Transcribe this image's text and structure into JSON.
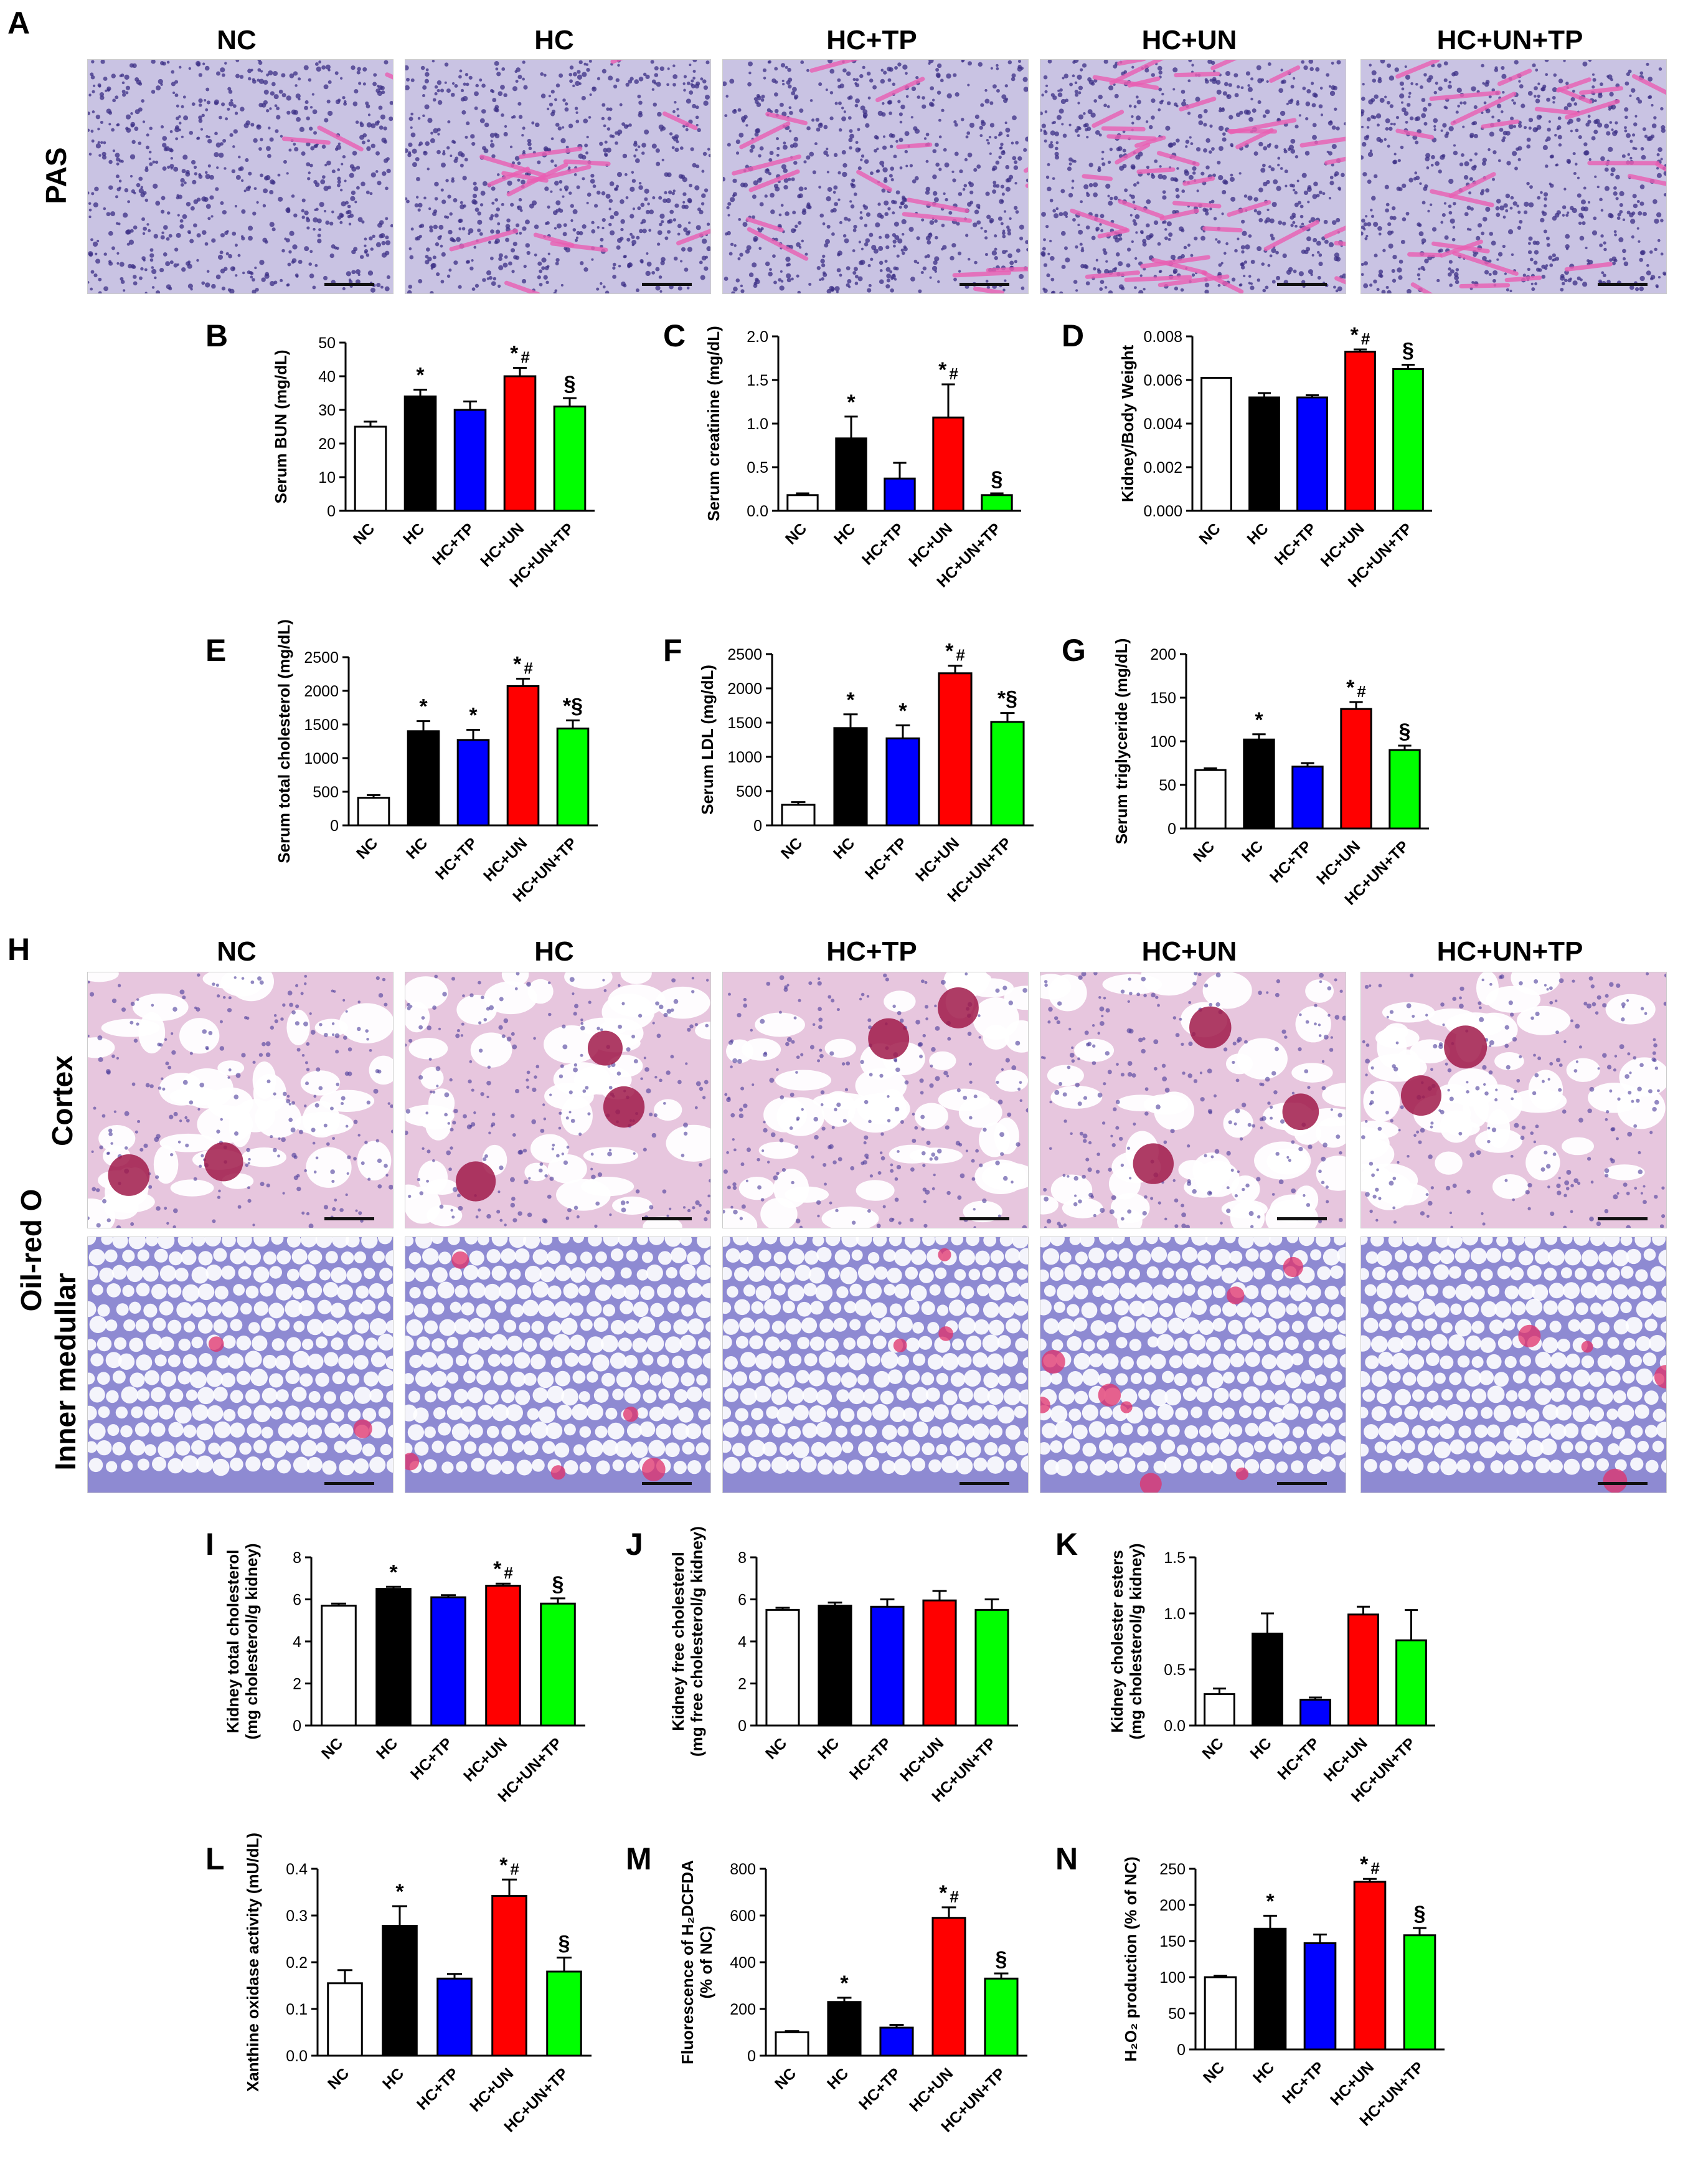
{
  "figure": {
    "panel_labels": [
      "A",
      "B",
      "C",
      "D",
      "E",
      "F",
      "G",
      "H",
      "I",
      "J",
      "K",
      "L",
      "M",
      "N"
    ],
    "group_names": [
      "NC",
      "HC",
      "HC+TP",
      "HC+UN",
      "HC+UN+TP"
    ],
    "colors": {
      "NC": "#ffffff",
      "HC": "#000000",
      "HC+TP": "#0000ff",
      "HC+UN": "#ff0000",
      "HC+UN+TP": "#00ff00"
    },
    "pas": {
      "row_label": "PAS",
      "images": [
        {
          "group": "NC",
          "pink": 0.05
        },
        {
          "group": "HC",
          "pink": 0.25
        },
        {
          "group": "HC+TP",
          "pink": 0.3
        },
        {
          "group": "HC+UN",
          "pink": 0.7
        },
        {
          "group": "HC+UN+TP",
          "pink": 0.45
        }
      ]
    },
    "oilred": {
      "stain_label": "Oil-red O",
      "cortex_label": "Cortex",
      "medullar_label": "Inner medullar",
      "cortex_images": [
        {
          "group": "NC",
          "red": 0.2
        },
        {
          "group": "HC",
          "red": 0.5
        },
        {
          "group": "HC+TP",
          "red": 0.3
        },
        {
          "group": "HC+UN",
          "red": 0.6
        },
        {
          "group": "HC+UN+TP",
          "red": 0.4
        }
      ],
      "medullar_images": [
        {
          "group": "NC",
          "red": 0.15
        },
        {
          "group": "HC",
          "red": 0.45
        },
        {
          "group": "HC+TP",
          "red": 0.25
        },
        {
          "group": "HC+UN",
          "red": 0.75
        },
        {
          "group": "HC+UN+TP",
          "red": 0.4
        }
      ]
    }
  },
  "chart_data": [
    {
      "panel": "B",
      "type": "bar",
      "ylabel": "Serum BUN (mg/dL)",
      "ylim": [
        0,
        50
      ],
      "yticks": [
        "0",
        "10",
        "20",
        "30",
        "40",
        "50"
      ],
      "categories": [
        "NC",
        "HC",
        "HC+TP",
        "HC+UN",
        "HC+UN+TP"
      ],
      "values": [
        25,
        34,
        30,
        40,
        31
      ],
      "errors": [
        1.5,
        2,
        2.5,
        2.5,
        2.5
      ],
      "annotations": [
        "",
        "*",
        "",
        "*#",
        "§"
      ]
    },
    {
      "panel": "C",
      "type": "bar",
      "ylabel": "Serum creatinine (mg/dL)",
      "ylim": [
        0,
        2.0
      ],
      "yticks": [
        "0.0",
        "0.5",
        "1.0",
        "1.5",
        "2.0"
      ],
      "categories": [
        "NC",
        "HC",
        "HC+TP",
        "HC+UN",
        "HC+UN+TP"
      ],
      "values": [
        0.18,
        0.83,
        0.37,
        1.07,
        0.18
      ],
      "errors": [
        0.02,
        0.25,
        0.18,
        0.38,
        0.02
      ],
      "annotations": [
        "",
        "*",
        "",
        "*#",
        "§"
      ]
    },
    {
      "panel": "D",
      "type": "bar",
      "ylabel": "Kidney/Body Weight",
      "ylim": [
        0,
        0.008
      ],
      "yticks": [
        "0.000",
        "0.002",
        "0.004",
        "0.006",
        "0.008"
      ],
      "categories": [
        "NC",
        "HC",
        "HC+TP",
        "HC+UN",
        "HC+UN+TP"
      ],
      "values": [
        0.0061,
        0.0052,
        0.0052,
        0.0073,
        0.0065
      ],
      "errors": [
        0.0,
        0.0002,
        0.0001,
        0.0001,
        0.0002
      ],
      "annotations": [
        "",
        "",
        "",
        "*#",
        "§"
      ]
    },
    {
      "panel": "E",
      "type": "bar",
      "ylabel": "Serum total cholesterol (mg/dL)",
      "ylim": [
        0,
        2500
      ],
      "yticks": [
        "0",
        "500",
        "1000",
        "1500",
        "2000",
        "2500"
      ],
      "categories": [
        "NC",
        "HC",
        "HC+TP",
        "HC+UN",
        "HC+UN+TP"
      ],
      "values": [
        410,
        1400,
        1270,
        2070,
        1440
      ],
      "errors": [
        40,
        150,
        150,
        110,
        120
      ],
      "annotations": [
        "",
        "*",
        "*",
        "*#",
        "*§"
      ]
    },
    {
      "panel": "F",
      "type": "bar",
      "ylabel": "Serum LDL (mg/dL)",
      "ylim": [
        0,
        2500
      ],
      "yticks": [
        "0",
        "500",
        "1000",
        "1500",
        "2000",
        "2500"
      ],
      "categories": [
        "NC",
        "HC",
        "HC+TP",
        "HC+UN",
        "HC+UN+TP"
      ],
      "values": [
        300,
        1420,
        1270,
        2220,
        1510
      ],
      "errors": [
        40,
        200,
        190,
        110,
        130
      ],
      "annotations": [
        "",
        "*",
        "*",
        "*#",
        "*§"
      ]
    },
    {
      "panel": "G",
      "type": "bar",
      "ylabel": "Serum triglyceride (mg/dL)",
      "ylim": [
        0,
        200
      ],
      "yticks": [
        "0",
        "50",
        "100",
        "150",
        "200"
      ],
      "categories": [
        "NC",
        "HC",
        "HC+TP",
        "HC+UN",
        "HC+UN+TP"
      ],
      "values": [
        67,
        102,
        71,
        137,
        90
      ],
      "errors": [
        2,
        6,
        4,
        8,
        5
      ],
      "annotations": [
        "",
        "*",
        "",
        "*#",
        "§"
      ]
    },
    {
      "panel": "I",
      "type": "bar",
      "ylabel": "Kidney total cholesterol\n(mg cholesterol/g kidney)",
      "ylim": [
        0,
        8
      ],
      "yticks": [
        "0",
        "2",
        "4",
        "6",
        "8"
      ],
      "categories": [
        "NC",
        "HC",
        "HC+TP",
        "HC+UN",
        "HC+UN+TP"
      ],
      "values": [
        5.7,
        6.5,
        6.1,
        6.65,
        5.8
      ],
      "errors": [
        0.1,
        0.1,
        0.1,
        0.1,
        0.25
      ],
      "annotations": [
        "",
        "*",
        "",
        "*#",
        "§"
      ]
    },
    {
      "panel": "J",
      "type": "bar",
      "ylabel": "Kidney free cholesterol\n(mg free cholesterol/g kidney)",
      "ylim": [
        0,
        8
      ],
      "yticks": [
        "0",
        "2",
        "4",
        "6",
        "8"
      ],
      "categories": [
        "NC",
        "HC",
        "HC+TP",
        "HC+UN",
        "HC+UN+TP"
      ],
      "values": [
        5.5,
        5.7,
        5.65,
        5.95,
        5.5
      ],
      "errors": [
        0.1,
        0.15,
        0.35,
        0.45,
        0.5
      ],
      "annotations": [
        "",
        "",
        "",
        "",
        ""
      ]
    },
    {
      "panel": "K",
      "type": "bar",
      "ylabel": "Kidney cholester esters\n(mg cholesterol/g kidney)",
      "ylim": [
        0,
        1.5
      ],
      "yticks": [
        "0.0",
        "0.5",
        "1.0",
        "1.5"
      ],
      "categories": [
        "NC",
        "HC",
        "HC+TP",
        "HC+UN",
        "HC+UN+TP"
      ],
      "values": [
        0.28,
        0.82,
        0.23,
        0.99,
        0.76
      ],
      "errors": [
        0.05,
        0.18,
        0.02,
        0.07,
        0.27
      ],
      "annotations": [
        "",
        "",
        "",
        "",
        ""
      ]
    },
    {
      "panel": "L",
      "type": "bar",
      "ylabel": "Xanthine oxidase activity (mU/dL)",
      "ylim": [
        0,
        0.4
      ],
      "yticks": [
        "0.0",
        "0.1",
        "0.2",
        "0.3",
        "0.4"
      ],
      "categories": [
        "NC",
        "HC",
        "HC+TP",
        "HC+UN",
        "HC+UN+TP"
      ],
      "values": [
        0.155,
        0.278,
        0.165,
        0.342,
        0.18
      ],
      "errors": [
        0.028,
        0.042,
        0.01,
        0.035,
        0.03
      ],
      "annotations": [
        "",
        "*",
        "",
        "*#",
        "§"
      ]
    },
    {
      "panel": "M",
      "type": "bar",
      "ylabel": "Fluorescence of H₂DCFDA\n(% of NC)",
      "ylim": [
        0,
        800
      ],
      "yticks": [
        "0",
        "200",
        "400",
        "600",
        "800"
      ],
      "categories": [
        "NC",
        "HC",
        "HC+TP",
        "HC+UN",
        "HC+UN+TP"
      ],
      "values": [
        100,
        230,
        120,
        590,
        330
      ],
      "errors": [
        5,
        18,
        12,
        45,
        22
      ],
      "annotations": [
        "",
        "*",
        "",
        "*#",
        "§"
      ]
    },
    {
      "panel": "N",
      "type": "bar",
      "ylabel": "H₂O₂ production (% of NC)",
      "ylim": [
        0,
        250
      ],
      "yticks": [
        "0",
        "50",
        "100",
        "150",
        "200",
        "250"
      ],
      "categories": [
        "NC",
        "HC",
        "HC+TP",
        "HC+UN",
        "HC+UN+TP"
      ],
      "values": [
        100,
        167,
        147,
        232,
        158
      ],
      "errors": [
        2,
        18,
        12,
        4,
        10
      ],
      "annotations": [
        "",
        "*",
        "",
        "*#",
        "§"
      ]
    }
  ]
}
